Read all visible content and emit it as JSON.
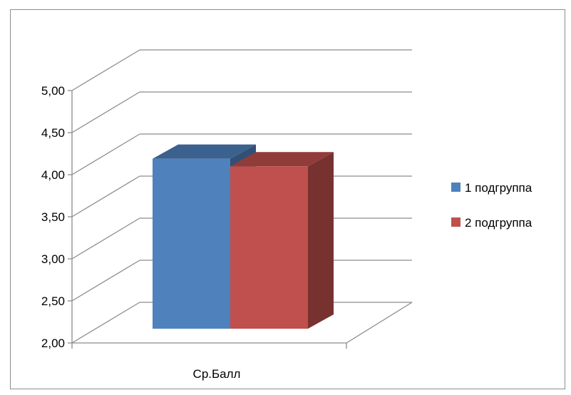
{
  "chart_data": {
    "type": "bar",
    "categories": [
      "Ср.Балл"
    ],
    "series": [
      {
        "name": "1 подгруппа",
        "values": [
          4.02
        ],
        "color": "#4f81bd"
      },
      {
        "name": "2 подгруппа",
        "values": [
          3.93
        ],
        "color": "#c0504d"
      }
    ],
    "y_ticks": [
      "2,00",
      "2,50",
      "3,00",
      "3,50",
      "4,00",
      "4,50",
      "5,00"
    ],
    "ylim": [
      2.0,
      5.0
    ],
    "grid": true,
    "legend_position": "right",
    "three_d": true
  }
}
